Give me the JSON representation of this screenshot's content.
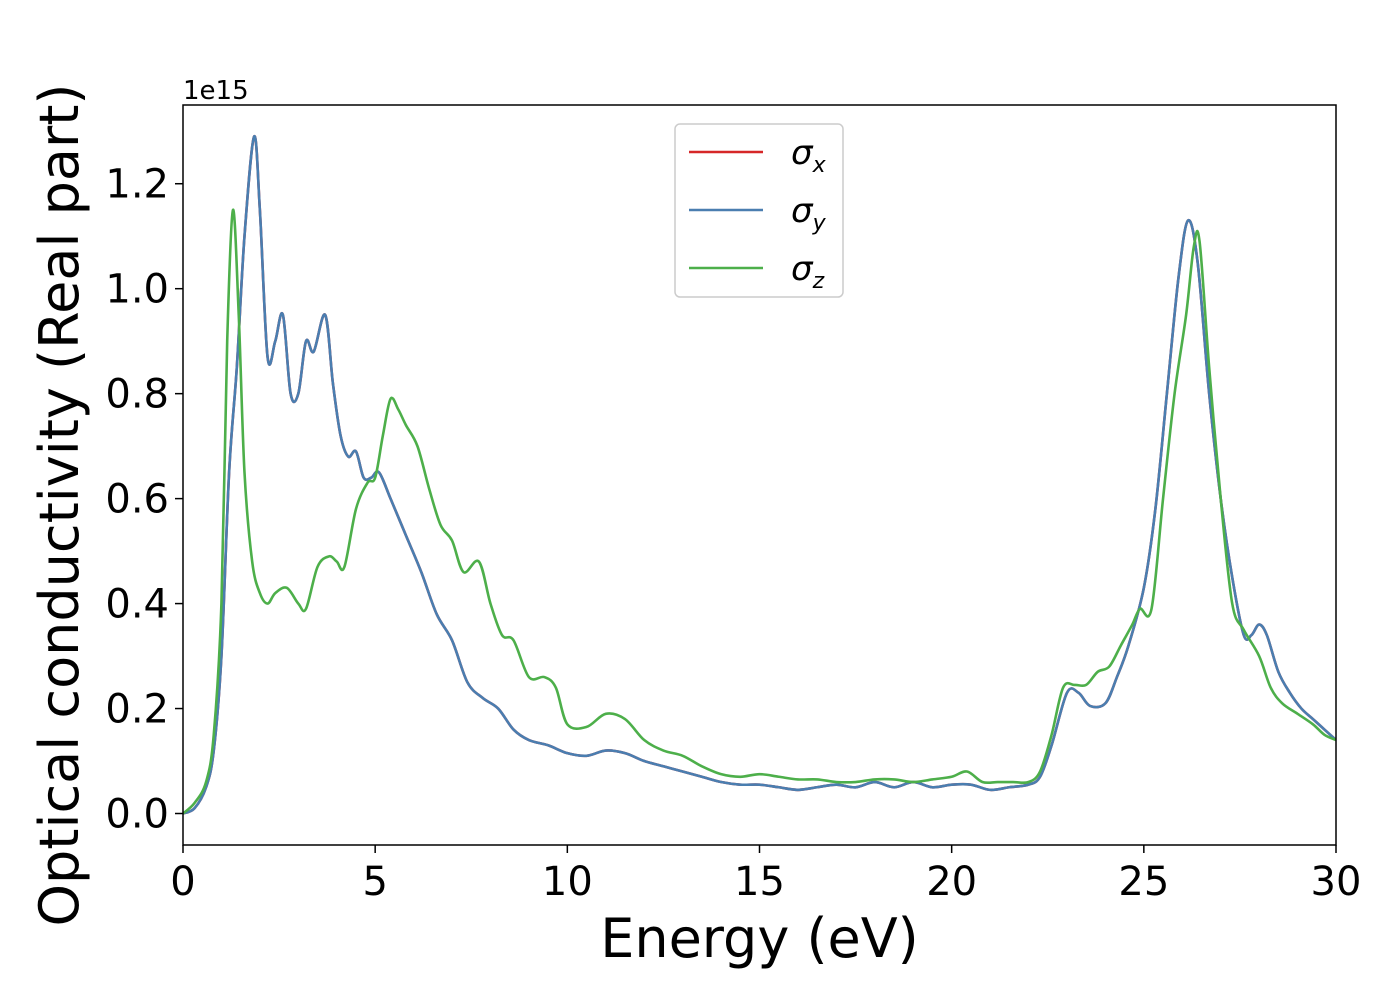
{
  "chart_data": {
    "type": "line",
    "xlabel": "Energy (eV)",
    "ylabel": "Optical conductivity (Real part)",
    "y_offset_text": "1e15",
    "xlim": [
      0,
      30
    ],
    "ylim": [
      -0.06,
      1.35
    ],
    "xticks": [
      0,
      5,
      10,
      15,
      20,
      25,
      30
    ],
    "xtick_labels": [
      "0",
      "5",
      "10",
      "15",
      "20",
      "25",
      "30"
    ],
    "yticks": [
      0.0,
      0.2,
      0.4,
      0.6,
      0.8,
      1.0,
      1.2
    ],
    "ytick_labels": [
      "0.0",
      "0.2",
      "0.4",
      "0.6",
      "0.8",
      "1.0",
      "1.2"
    ],
    "grid": false,
    "legend_position": "top-center",
    "series": [
      {
        "name": "σx",
        "legend_main": "σ",
        "legend_sub": "x",
        "color": "#d62728",
        "x": [
          0,
          0.3,
          0.6,
          0.8,
          1.0,
          1.2,
          1.4,
          1.6,
          1.85,
          2.0,
          2.2,
          2.4,
          2.6,
          2.8,
          3.0,
          3.2,
          3.4,
          3.7,
          3.9,
          4.1,
          4.3,
          4.5,
          4.7,
          4.9,
          5.1,
          5.4,
          5.8,
          6.2,
          6.6,
          7.0,
          7.4,
          7.8,
          8.2,
          8.6,
          9.0,
          9.5,
          10.0,
          10.5,
          11.0,
          11.5,
          12.0,
          12.5,
          13.0,
          13.5,
          14.0,
          14.5,
          15.0,
          15.5,
          16.0,
          16.5,
          17.0,
          17.5,
          18.0,
          18.5,
          19.0,
          19.5,
          20.0,
          20.5,
          21.0,
          21.5,
          22.0,
          22.3,
          22.6,
          23.0,
          23.3,
          23.6,
          24.0,
          24.3,
          24.6,
          25.0,
          25.3,
          25.6,
          25.9,
          26.15,
          26.4,
          26.7,
          27.0,
          27.3,
          27.6,
          27.8,
          28.0,
          28.2,
          28.5,
          28.8,
          29.1,
          29.4,
          29.7,
          30.0
        ],
        "values": [
          0.0,
          0.01,
          0.05,
          0.12,
          0.3,
          0.65,
          0.85,
          1.1,
          1.29,
          1.15,
          0.87,
          0.9,
          0.95,
          0.8,
          0.8,
          0.9,
          0.88,
          0.95,
          0.82,
          0.72,
          0.68,
          0.69,
          0.64,
          0.64,
          0.65,
          0.6,
          0.53,
          0.46,
          0.38,
          0.33,
          0.25,
          0.22,
          0.2,
          0.16,
          0.14,
          0.13,
          0.115,
          0.11,
          0.12,
          0.115,
          0.1,
          0.09,
          0.08,
          0.07,
          0.06,
          0.055,
          0.055,
          0.05,
          0.045,
          0.05,
          0.055,
          0.05,
          0.06,
          0.05,
          0.06,
          0.05,
          0.055,
          0.055,
          0.045,
          0.05,
          0.055,
          0.07,
          0.13,
          0.23,
          0.23,
          0.205,
          0.21,
          0.26,
          0.32,
          0.43,
          0.58,
          0.8,
          1.02,
          1.13,
          1.05,
          0.8,
          0.6,
          0.45,
          0.34,
          0.34,
          0.36,
          0.34,
          0.27,
          0.23,
          0.2,
          0.18,
          0.16,
          0.14
        ]
      },
      {
        "name": "σy",
        "legend_main": "σ",
        "legend_sub": "y",
        "color": "#4a7eb0",
        "x": [
          0,
          0.3,
          0.6,
          0.8,
          1.0,
          1.2,
          1.4,
          1.6,
          1.85,
          2.0,
          2.2,
          2.4,
          2.6,
          2.8,
          3.0,
          3.2,
          3.4,
          3.7,
          3.9,
          4.1,
          4.3,
          4.5,
          4.7,
          4.9,
          5.1,
          5.4,
          5.8,
          6.2,
          6.6,
          7.0,
          7.4,
          7.8,
          8.2,
          8.6,
          9.0,
          9.5,
          10.0,
          10.5,
          11.0,
          11.5,
          12.0,
          12.5,
          13.0,
          13.5,
          14.0,
          14.5,
          15.0,
          15.5,
          16.0,
          16.5,
          17.0,
          17.5,
          18.0,
          18.5,
          19.0,
          19.5,
          20.0,
          20.5,
          21.0,
          21.5,
          22.0,
          22.3,
          22.6,
          23.0,
          23.3,
          23.6,
          24.0,
          24.3,
          24.6,
          25.0,
          25.3,
          25.6,
          25.9,
          26.15,
          26.4,
          26.7,
          27.0,
          27.3,
          27.6,
          27.8,
          28.0,
          28.2,
          28.5,
          28.8,
          29.1,
          29.4,
          29.7,
          30.0
        ],
        "values": [
          0.0,
          0.01,
          0.05,
          0.12,
          0.3,
          0.65,
          0.85,
          1.1,
          1.29,
          1.15,
          0.87,
          0.9,
          0.95,
          0.8,
          0.8,
          0.9,
          0.88,
          0.95,
          0.82,
          0.72,
          0.68,
          0.69,
          0.64,
          0.64,
          0.65,
          0.6,
          0.53,
          0.46,
          0.38,
          0.33,
          0.25,
          0.22,
          0.2,
          0.16,
          0.14,
          0.13,
          0.115,
          0.11,
          0.12,
          0.115,
          0.1,
          0.09,
          0.08,
          0.07,
          0.06,
          0.055,
          0.055,
          0.05,
          0.045,
          0.05,
          0.055,
          0.05,
          0.06,
          0.05,
          0.06,
          0.05,
          0.055,
          0.055,
          0.045,
          0.05,
          0.055,
          0.07,
          0.13,
          0.23,
          0.23,
          0.205,
          0.21,
          0.26,
          0.32,
          0.43,
          0.58,
          0.8,
          1.02,
          1.13,
          1.05,
          0.8,
          0.6,
          0.45,
          0.34,
          0.34,
          0.36,
          0.34,
          0.27,
          0.23,
          0.2,
          0.18,
          0.16,
          0.14
        ]
      },
      {
        "name": "σz",
        "legend_main": "σ",
        "legend_sub": "z",
        "color": "#4daf4a",
        "x": [
          0,
          0.3,
          0.6,
          0.8,
          1.0,
          1.15,
          1.3,
          1.45,
          1.6,
          1.8,
          2.0,
          2.2,
          2.4,
          2.7,
          3.0,
          3.2,
          3.5,
          3.8,
          4.0,
          4.2,
          4.5,
          4.8,
          5.0,
          5.2,
          5.4,
          5.6,
          5.8,
          6.1,
          6.4,
          6.7,
          7.0,
          7.3,
          7.7,
          8.0,
          8.3,
          8.6,
          9.0,
          9.4,
          9.7,
          10.0,
          10.5,
          11.0,
          11.5,
          12.0,
          12.5,
          13.0,
          13.5,
          14.0,
          14.5,
          15.0,
          15.5,
          16.0,
          16.5,
          17.0,
          17.5,
          18.0,
          18.5,
          19.0,
          19.5,
          20.0,
          20.4,
          20.8,
          21.2,
          21.6,
          22.0,
          22.3,
          22.6,
          22.9,
          23.2,
          23.5,
          23.8,
          24.1,
          24.4,
          24.7,
          24.9,
          25.2,
          25.5,
          25.8,
          26.1,
          26.3,
          26.45,
          26.7,
          27.0,
          27.3,
          27.6,
          28.0,
          28.3,
          28.6,
          29.0,
          29.4,
          29.7,
          30.0
        ],
        "values": [
          0.0,
          0.02,
          0.06,
          0.15,
          0.4,
          0.9,
          1.15,
          0.95,
          0.65,
          0.48,
          0.42,
          0.4,
          0.42,
          0.43,
          0.4,
          0.39,
          0.47,
          0.49,
          0.48,
          0.47,
          0.58,
          0.63,
          0.64,
          0.72,
          0.79,
          0.77,
          0.74,
          0.7,
          0.62,
          0.55,
          0.52,
          0.46,
          0.48,
          0.4,
          0.34,
          0.33,
          0.26,
          0.26,
          0.24,
          0.17,
          0.165,
          0.19,
          0.18,
          0.14,
          0.12,
          0.11,
          0.09,
          0.075,
          0.07,
          0.075,
          0.07,
          0.065,
          0.065,
          0.06,
          0.06,
          0.065,
          0.065,
          0.06,
          0.065,
          0.07,
          0.08,
          0.06,
          0.06,
          0.06,
          0.06,
          0.08,
          0.15,
          0.24,
          0.245,
          0.245,
          0.27,
          0.28,
          0.32,
          0.36,
          0.39,
          0.39,
          0.6,
          0.8,
          0.95,
          1.08,
          1.09,
          0.85,
          0.6,
          0.4,
          0.35,
          0.3,
          0.24,
          0.21,
          0.19,
          0.17,
          0.15,
          0.14
        ]
      }
    ]
  }
}
